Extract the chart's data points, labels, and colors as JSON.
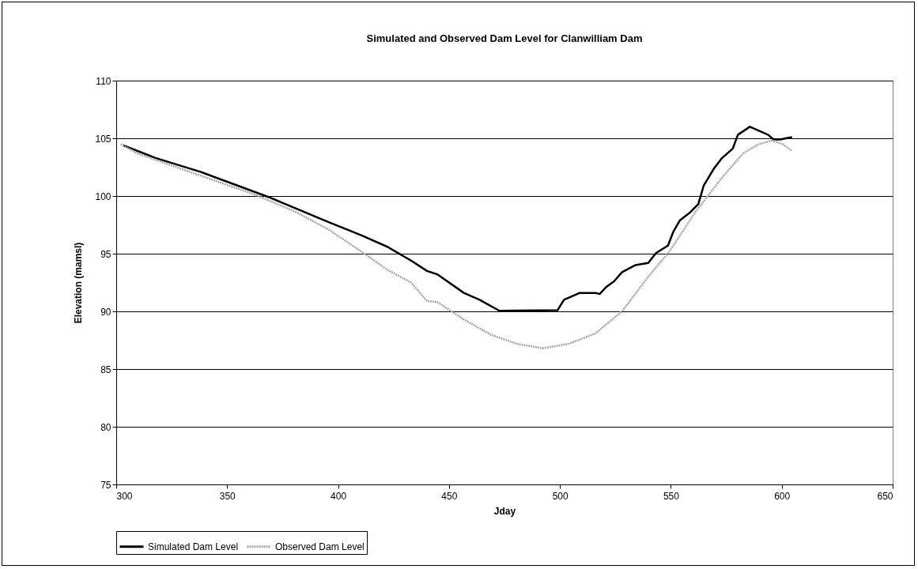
{
  "chart_data": {
    "type": "line",
    "title": "Simulated and Observed Dam Level for Clanwilliam Dam",
    "xlabel": "Jday",
    "ylabel": "Elevation (mamsl)",
    "xlim": [
      300,
      650
    ],
    "xticks": [
      300,
      350,
      400,
      450,
      500,
      550,
      600,
      650
    ],
    "ylim": [
      75,
      110
    ],
    "yticks": [
      75,
      80,
      85,
      90,
      95,
      100,
      105,
      110
    ],
    "grid": "y",
    "legend": "bottom",
    "marker": "none",
    "series": [
      {
        "name": "Simulated Dam Level",
        "color": "#000000",
        "line_style": "solid",
        "x": [
          303,
          317.7,
          337.9,
          368.8,
          394.9,
          410.4,
          422.2,
          432.9,
          440.1,
          444.8,
          456.7,
          463.8,
          472.7,
          498.9,
          501.8,
          508.9,
          516.1,
          517.9,
          520.8,
          524.4,
          528,
          533.9,
          539.8,
          543.3,
          548.7,
          551.1,
          554.1,
          558.8,
          562.4,
          564.8,
          569.5,
          573.1,
          577.9,
          580.2,
          585.6,
          593.9,
          596.3,
          599.2,
          604.6
        ],
        "values": [
          104.4,
          103.3,
          102.1,
          99.9,
          97.8,
          96.6,
          95.6,
          94.4,
          93.5,
          93.2,
          91.6,
          91,
          90.05,
          90.1,
          91,
          91.6,
          91.6,
          91.5,
          92.1,
          92.6,
          93.4,
          94,
          94.2,
          95.05,
          95.7,
          96.9,
          97.9,
          98.6,
          99.3,
          100.9,
          102.4,
          103.3,
          104.1,
          105.3,
          106,
          105.3,
          104.9,
          104.9,
          105.1
        ]
      },
      {
        "name": "Observed Dam Level",
        "color": "#a6a6a6",
        "line_style": "dotted",
        "x": [
          302,
          309.4,
          336.7,
          362.8,
          380.6,
          396.1,
          410.4,
          422.2,
          432.9,
          440.1,
          444.8,
          456.7,
          468.6,
          480.4,
          492.3,
          504.2,
          516.1,
          528,
          539.8,
          549.4,
          561.2,
          573.1,
          582.6,
          589.7,
          595.7,
          600.4,
          604.6
        ],
        "values": [
          104.5,
          103.7,
          101.85,
          100.1,
          98.65,
          97.05,
          95.2,
          93.6,
          92.5,
          90.9,
          90.8,
          89.3,
          88,
          87.2,
          86.8,
          87.2,
          88.1,
          90,
          93,
          95.2,
          98.65,
          101.6,
          103.7,
          104.5,
          104.8,
          104.5,
          103.9
        ]
      }
    ]
  }
}
